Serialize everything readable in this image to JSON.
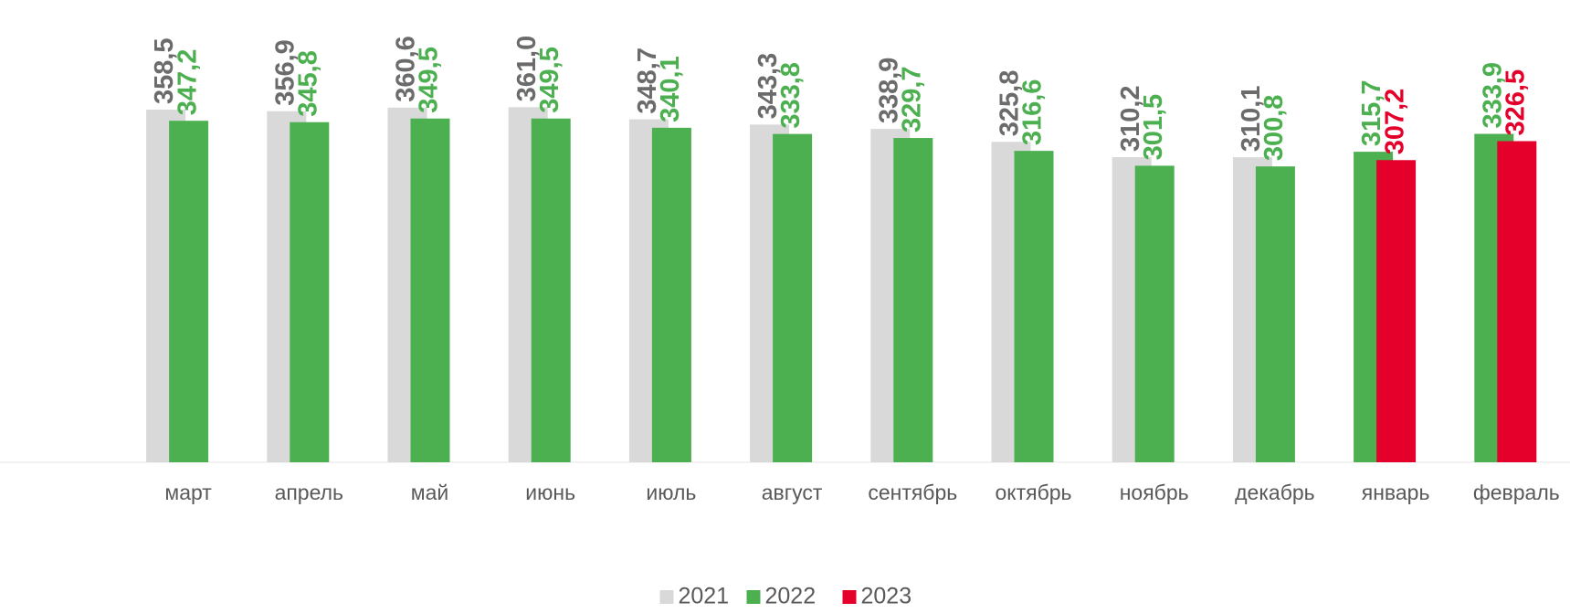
{
  "chart_data": {
    "type": "bar",
    "categories": [
      "март",
      "апрель",
      "май",
      "июнь",
      "июль",
      "август",
      "сентябрь",
      "октябрь",
      "ноябрь",
      "декабрь",
      "январь",
      "февраль"
    ],
    "series": [
      {
        "name": "2021",
        "color": "#d9d9d9",
        "label_color": "#6b6b6b",
        "values": [
          358.5,
          356.9,
          360.6,
          361.0,
          348.7,
          343.3,
          338.9,
          325.8,
          310.2,
          310.1,
          null,
          null
        ],
        "value_labels": [
          "358,5",
          "356,9",
          "360,6",
          "361,0",
          "348,7",
          "343,3",
          "338,9",
          "325,8",
          "310,2",
          "310,1",
          null,
          null
        ]
      },
      {
        "name": "2022",
        "color": "#4caf50",
        "label_color": "#4caf50",
        "values": [
          347.2,
          345.8,
          349.5,
          349.5,
          340.1,
          333.8,
          329.7,
          316.6,
          301.5,
          300.8,
          315.7,
          333.9
        ],
        "value_labels": [
          "347,2",
          "345,8",
          "349,5",
          "349,5",
          "340,1",
          "333,8",
          "329,7",
          "316,6",
          "301,5",
          "300,8",
          "315,7",
          "333,9"
        ]
      },
      {
        "name": "2023",
        "color": "#e4002b",
        "label_color": "#e4002b",
        "values": [
          null,
          null,
          null,
          null,
          null,
          null,
          null,
          null,
          null,
          null,
          307.2,
          326.5
        ],
        "value_labels": [
          null,
          null,
          null,
          null,
          null,
          null,
          null,
          null,
          null,
          null,
          "307,2",
          "326,5"
        ]
      }
    ],
    "ylim": [
      0,
      470
    ],
    "legend": "bottom"
  }
}
